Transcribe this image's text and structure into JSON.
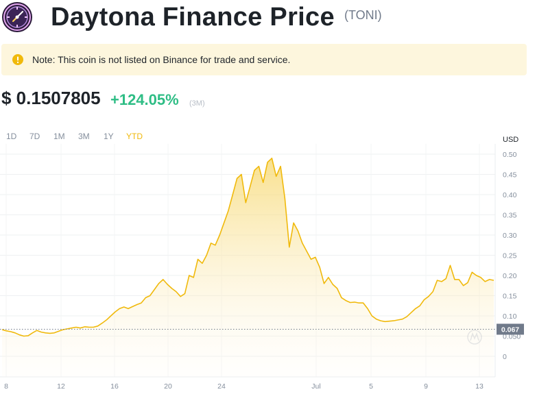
{
  "header": {
    "title": "Daytona Finance Price",
    "ticker": "(TONI)"
  },
  "note": {
    "text": "Note: This coin is not listed on Binance for trade and service."
  },
  "price": {
    "value": "$ 0.1507805",
    "change": "+124.05%",
    "period": "(3M)"
  },
  "ranges": {
    "items": [
      "1D",
      "7D",
      "1M",
      "3M",
      "1Y",
      "YTD"
    ],
    "active": "YTD"
  },
  "colors": {
    "accent": "#f0b90b",
    "positive": "#2ebd85",
    "note_bg": "#fdf6dd"
  },
  "chart_data": {
    "type": "area",
    "currency_label": "USD",
    "yticks": [
      "0.50",
      "0.45",
      "0.40",
      "0.35",
      "0.30",
      "0.25",
      "0.20",
      "0.15",
      "0.10",
      "0.067",
      "0.050",
      "0"
    ],
    "ylim": [
      0,
      0.52
    ],
    "xticks": [
      "8",
      "12",
      "16",
      "20",
      "24",
      "Jul",
      "5",
      "9",
      "13"
    ],
    "reference_value": 0.067,
    "reference_label": "0.067",
    "watermark_icon": "coin-watermark-icon",
    "grid": true,
    "series": [
      {
        "values": [
          0.066,
          0.063,
          0.061,
          0.058,
          0.053,
          0.05,
          0.051,
          0.058,
          0.064,
          0.06,
          0.058,
          0.057,
          0.058,
          0.062,
          0.066,
          0.068,
          0.07,
          0.072,
          0.07,
          0.073,
          0.072,
          0.072,
          0.075,
          0.082,
          0.09,
          0.1,
          0.11,
          0.118,
          0.122,
          0.118,
          0.123,
          0.128,
          0.132,
          0.145,
          0.15,
          0.165,
          0.18,
          0.19,
          0.178,
          0.168,
          0.16,
          0.148,
          0.155,
          0.2,
          0.195,
          0.24,
          0.23,
          0.25,
          0.28,
          0.275,
          0.3,
          0.33,
          0.36,
          0.4,
          0.44,
          0.45,
          0.38,
          0.42,
          0.46,
          0.47,
          0.43,
          0.48,
          0.49,
          0.445,
          0.47,
          0.39,
          0.27,
          0.33,
          0.31,
          0.28,
          0.26,
          0.24,
          0.245,
          0.22,
          0.18,
          0.195,
          0.178,
          0.168,
          0.145,
          0.138,
          0.133,
          0.134,
          0.132,
          0.132,
          0.118,
          0.1,
          0.092,
          0.088,
          0.086,
          0.087,
          0.088,
          0.09,
          0.092,
          0.098,
          0.108,
          0.118,
          0.125,
          0.14,
          0.148,
          0.16,
          0.188,
          0.185,
          0.192,
          0.225,
          0.19,
          0.19,
          0.175,
          0.182,
          0.208,
          0.2,
          0.195,
          0.185,
          0.19,
          0.188
        ]
      }
    ]
  }
}
